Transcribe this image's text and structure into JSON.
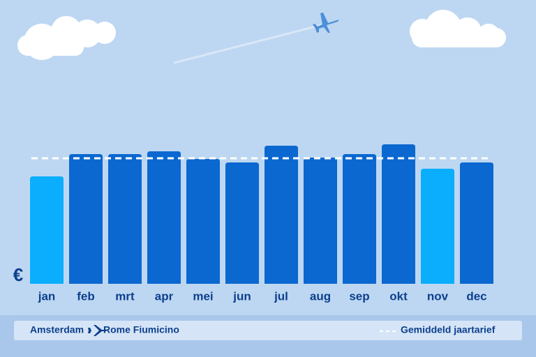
{
  "chart_data": {
    "type": "bar",
    "currency_symbol": "€",
    "categories": [
      "jan",
      "feb",
      "mrt",
      "apr",
      "mei",
      "jun",
      "jul",
      "aug",
      "sep",
      "okt",
      "nov",
      "dec"
    ],
    "values": [
      154,
      186,
      186,
      190,
      179,
      174,
      198,
      181,
      186,
      200,
      165,
      174
    ],
    "colors": [
      "#0aaefc",
      "#0a68d0",
      "#0a68d0",
      "#0a68d0",
      "#0a68d0",
      "#0a68d0",
      "#0a68d0",
      "#0a68d0",
      "#0a68d0",
      "#0a68d0",
      "#0aaefc",
      "#0a68d0"
    ],
    "ylim": [
      0,
      200
    ],
    "average": 180,
    "average_color": "#ffffff",
    "legend": {
      "origin": "Amsterdam",
      "destination": "Rome Fiumicino",
      "average_label": "Gemiddeld jaartarief"
    }
  }
}
